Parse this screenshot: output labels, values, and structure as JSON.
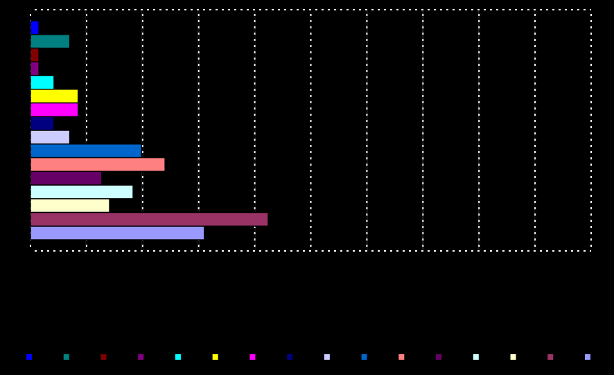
{
  "chart_data": {
    "type": "bar",
    "orientation": "horizontal",
    "grid": true,
    "xlim": [
      0,
      10
    ],
    "xticks": [
      0,
      1,
      2,
      3,
      4,
      5,
      6,
      7,
      8,
      9,
      10
    ],
    "series": [
      {
        "color": "#0000ff",
        "values": [
          0.15
        ]
      },
      {
        "color": "#008080",
        "values": [
          0.7
        ]
      },
      {
        "color": "#800000",
        "values": [
          0.15
        ]
      },
      {
        "color": "#800080",
        "values": [
          0.15
        ]
      },
      {
        "color": "#00ffff",
        "values": [
          0.42
        ]
      },
      {
        "color": "#ffff00",
        "values": [
          0.85
        ]
      },
      {
        "color": "#ff00ff",
        "values": [
          0.85
        ]
      },
      {
        "color": "#000080",
        "values": [
          0.42
        ]
      },
      {
        "color": "#ccccff",
        "values": [
          0.7
        ]
      },
      {
        "color": "#0066cc",
        "values": [
          1.98
        ]
      },
      {
        "color": "#ff8080",
        "values": [
          2.4
        ]
      },
      {
        "color": "#660066",
        "values": [
          1.27
        ]
      },
      {
        "color": "#ccffff",
        "values": [
          1.83
        ]
      },
      {
        "color": "#ffffcc",
        "values": [
          1.41
        ]
      },
      {
        "color": "#993366",
        "values": [
          4.24
        ]
      },
      {
        "color": "#9999ff",
        "values": [
          3.1
        ]
      }
    ]
  }
}
